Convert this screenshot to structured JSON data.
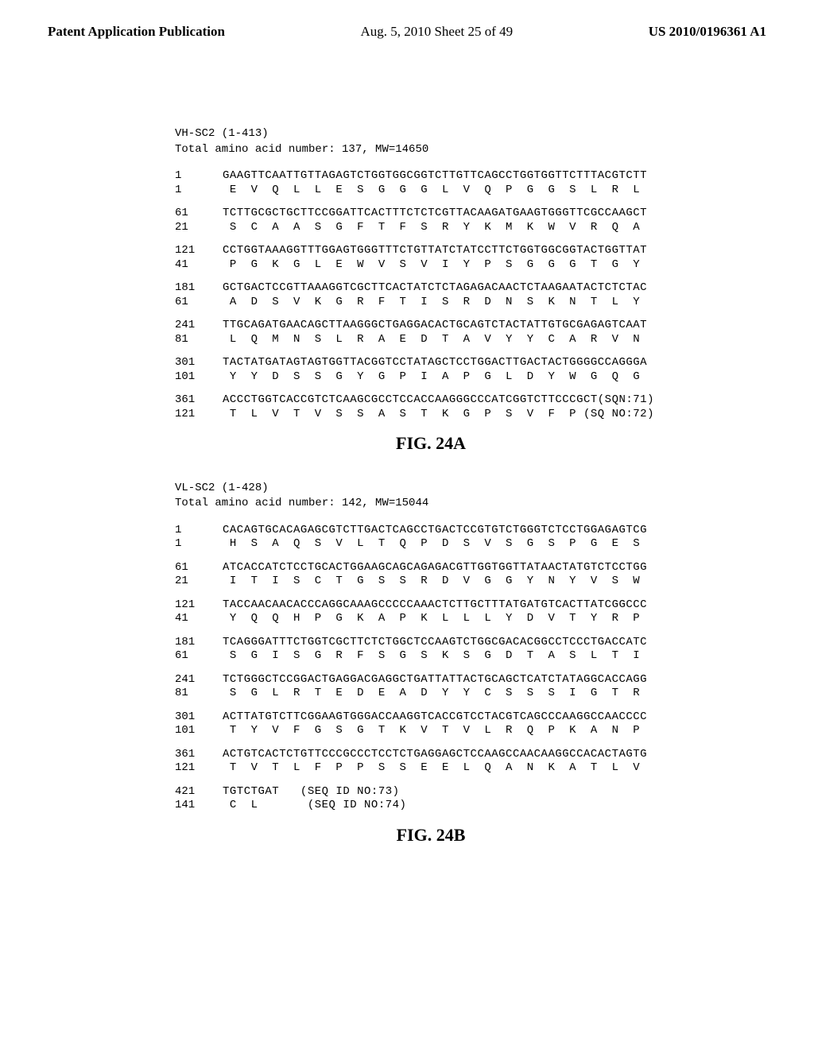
{
  "header": {
    "left": "Patent Application Publication",
    "center": "Aug. 5, 2010  Sheet 25 of 49",
    "right": "US 2010/0196361 A1"
  },
  "sectionA": {
    "title1": "VH-SC2 (1-413)",
    "title2": "Total amino acid number: 137, MW=14650",
    "blocks": [
      {
        "n": "1",
        "a": "1",
        "nuc": "GAAGTTCAATTGTTAGAGTCTGGTGGCGGTCTTGTTCAGCCTGGTGGTTCTTTACGTCTT",
        "aa": " E  V  Q  L  L  E  S  G  G  G  L  V  Q  P  G  G  S  L  R  L"
      },
      {
        "n": "61",
        "a": "21",
        "nuc": "TCTTGCGCTGCTTCCGGATTCACTTTCTCTCGTTACAAGATGAAGTGGGTTCGCCAAGCT",
        "aa": " S  C  A  A  S  G  F  T  F  S  R  Y  K  M  K  W  V  R  Q  A"
      },
      {
        "n": "121",
        "a": "41",
        "nuc": "CCTGGTAAAGGTTTGGAGTGGGTTTCTGTTATCTATCCTTCTGGTGGCGGTACTGGTTAT",
        "aa": " P  G  K  G  L  E  W  V  S  V  I  Y  P  S  G  G  G  T  G  Y"
      },
      {
        "n": "181",
        "a": "61",
        "nuc": "GCTGACTCCGTTAAAGGTCGCTTCACTATCTCTAGAGACAACTCTAAGAATACTCTCTAC",
        "aa": " A  D  S  V  K  G  R  F  T  I  S  R  D  N  S  K  N  T  L  Y"
      },
      {
        "n": "241",
        "a": "81",
        "nuc": "TTGCAGATGAACAGCTTAAGGGCTGAGGACACTGCAGTCTACTATTGTGCGAGAGTCAAT",
        "aa": " L  Q  M  N  S  L  R  A  E  D  T  A  V  Y  Y  C  A  R  V  N"
      },
      {
        "n": "301",
        "a": "101",
        "nuc": "TACTATGATAGTAGTGGTTACGGTCCTATAGCTCCTGGACTTGACTACTGGGGCCAGGGA",
        "aa": " Y  Y  D  S  S  G  Y  G  P  I  A  P  G  L  D  Y  W  G  Q  G"
      },
      {
        "n": "361",
        "a": "121",
        "nuc": "ACCCTGGTCACCGTCTCAAGCGCCTCCACCAAGGGCCCATCGGTCTTCCCGCT(SQN:71)",
        "aa": " T  L  V  T  V  S  S  A  S  T  K  G  P  S  V  F  P (SQ NO:72)"
      }
    ],
    "caption": "FIG. 24A"
  },
  "sectionB": {
    "title1": "VL-SC2 (1-428)",
    "title2": "Total amino acid number: 142, MW=15044",
    "blocks": [
      {
        "n": "1",
        "a": "1",
        "nuc": "CACAGTGCACAGAGCGTCTTGACTCAGCCTGACTCCGTGTCTGGGTCTCCTGGAGAGTCG",
        "aa": " H  S  A  Q  S  V  L  T  Q  P  D  S  V  S  G  S  P  G  E  S"
      },
      {
        "n": "61",
        "a": "21",
        "nuc": "ATCACCATCTCCTGCACTGGAAGCAGCAGAGACGTTGGTGGTTATAACTATGTCTCCTGG",
        "aa": " I  T  I  S  C  T  G  S  S  R  D  V  G  G  Y  N  Y  V  S  W"
      },
      {
        "n": "121",
        "a": "41",
        "nuc": "TACCAACAACACCCAGGCAAAGCCCCCAAACTCTTGCTTTATGATGTCACTTATCGGCCC",
        "aa": " Y  Q  Q  H  P  G  K  A  P  K  L  L  L  Y  D  V  T  Y  R  P"
      },
      {
        "n": "181",
        "a": "61",
        "nuc": "TCAGGGATTTCTGGTCGCTTCTCTGGCTCCAAGTCTGGCGACACGGCCTCCCTGACCATC",
        "aa": " S  G  I  S  G  R  F  S  G  S  K  S  G  D  T  A  S  L  T  I"
      },
      {
        "n": "241",
        "a": "81",
        "nuc": "TCTGGGCTCCGGACTGAGGACGAGGCTGATTATTACTGCAGCTCATCTATAGGCACCAGG",
        "aa": " S  G  L  R  T  E  D  E  A  D  Y  Y  C  S  S  S  I  G  T  R"
      },
      {
        "n": "301",
        "a": "101",
        "nuc": "ACTTATGTCTTCGGAAGTGGGACCAAGGTCACCGTCCTACGTCAGCCCAAGGCCAACCCC",
        "aa": " T  Y  V  F  G  S  G  T  K  V  T  V  L  R  Q  P  K  A  N  P"
      },
      {
        "n": "361",
        "a": "121",
        "nuc": "ACTGTCACTCTGTTCCCGCCCTCCTCTGAGGAGCTCCAAGCCAACAAGGCCACACTAGTG",
        "aa": " T  V  T  L  F  P  P  S  S  E  E  L  Q  A  N  K  A  T  L  V"
      },
      {
        "n": "421",
        "a": "141",
        "nuc": "TGTCTGAT   (SEQ ID NO:73)",
        "aa": " C  L       (SEQ ID NO:74)"
      }
    ],
    "caption": "FIG. 24B"
  }
}
